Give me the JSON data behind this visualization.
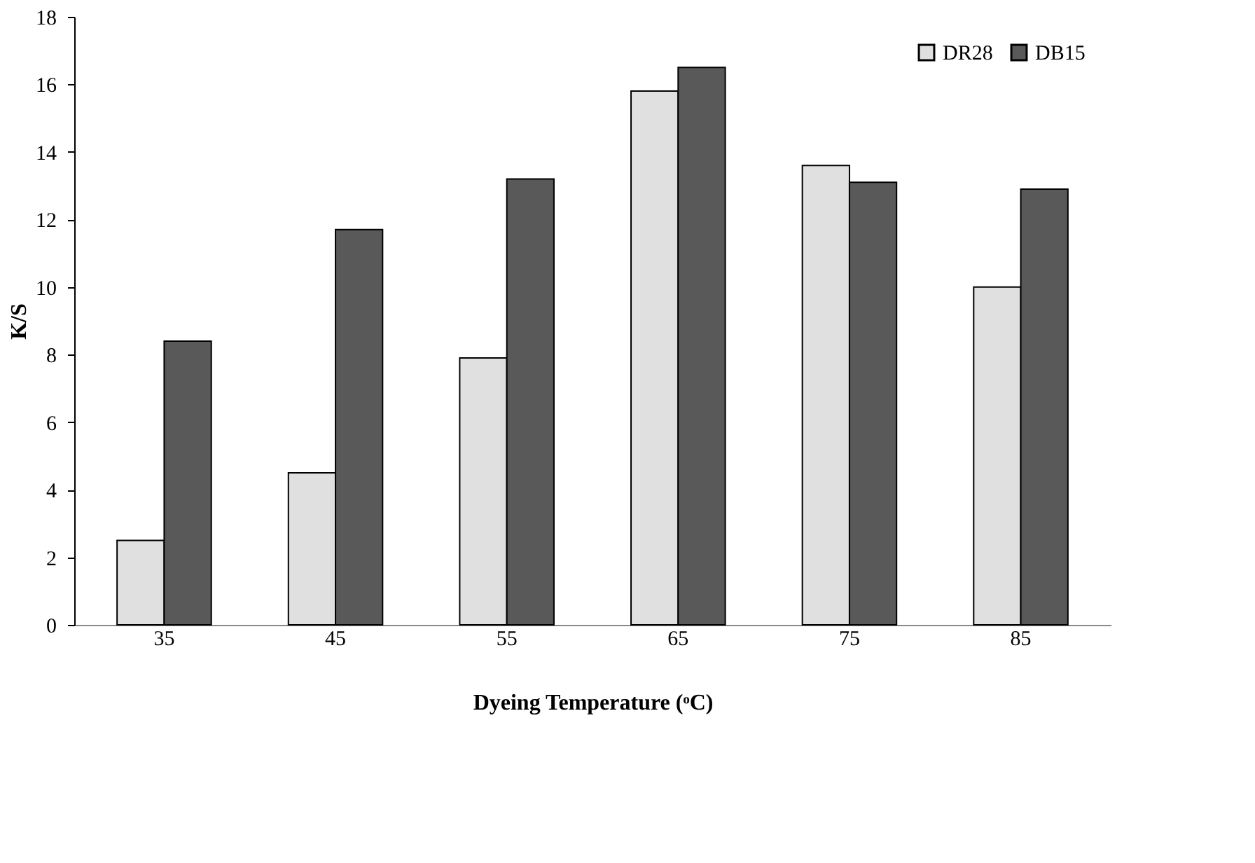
{
  "chart_data": {
    "type": "bar",
    "xlabel": "Dyeing Temperature (ᵒC)",
    "ylabel": "K/S",
    "categories": [
      "35",
      "45",
      "55",
      "65",
      "75",
      "85"
    ],
    "series": [
      {
        "name": "DR28",
        "color": "#e0e0e0",
        "values": [
          2.5,
          4.5,
          7.9,
          15.8,
          13.6,
          10.0
        ]
      },
      {
        "name": "DB15",
        "color": "#595959",
        "values": [
          8.4,
          11.7,
          13.2,
          16.5,
          13.1,
          12.9
        ]
      }
    ],
    "ylim": [
      0,
      18
    ],
    "yticks": [
      0,
      2,
      4,
      6,
      8,
      10,
      12,
      14,
      16,
      18
    ],
    "grid": false,
    "legend": "top right"
  }
}
